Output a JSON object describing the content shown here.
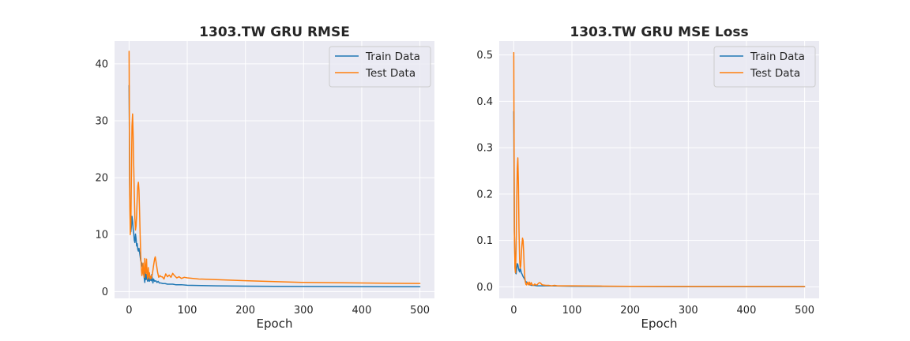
{
  "colors": {
    "train": "#1f77b4",
    "test": "#ff7f0e",
    "background": "#eaeaf2",
    "grid": "#ffffff"
  },
  "chart_data": [
    {
      "type": "line",
      "title": "1303.TW  GRU RMSE",
      "xlabel": "Epoch",
      "ylabel": "",
      "xlim": [
        -25,
        525
      ],
      "ylim": [
        -1.2,
        44
      ],
      "xticks": [
        0,
        100,
        200,
        300,
        400,
        500
      ],
      "xtick_labels": [
        "0",
        "100",
        "200",
        "300",
        "400",
        "500"
      ],
      "yticks": [
        0,
        10,
        20,
        30,
        40
      ],
      "ytick_labels": [
        "0",
        "10",
        "20",
        "30",
        "40"
      ],
      "grid": true,
      "legend_position": "upper right",
      "series": [
        {
          "name": "Train Data",
          "color": "#1f77b4",
          "x": [
            0,
            1,
            2,
            3,
            4,
            5,
            6,
            7,
            8,
            9,
            10,
            11,
            12,
            13,
            14,
            15,
            16,
            17,
            18,
            19,
            20,
            22,
            24,
            26,
            27,
            28,
            29,
            30,
            31,
            32,
            33,
            34,
            35,
            36,
            37,
            38,
            39,
            40,
            41,
            42,
            43,
            44,
            46,
            48,
            50,
            52,
            55,
            58,
            62,
            66,
            70,
            75,
            80,
            90,
            100,
            125,
            150,
            200,
            250,
            300,
            350,
            400,
            450,
            500
          ],
          "y": [
            36.2,
            19.0,
            11.2,
            10.5,
            11.5,
            13.2,
            12.4,
            11.0,
            10.2,
            9.0,
            8.6,
            10.1,
            9.3,
            8.0,
            8.4,
            7.4,
            7.1,
            7.6,
            6.9,
            6.2,
            5.4,
            4.9,
            4.0,
            2.4,
            1.6,
            3.6,
            2.1,
            3.0,
            2.2,
            1.8,
            2.6,
            2.0,
            1.8,
            2.6,
            2.0,
            1.9,
            3.0,
            2.1,
            1.5,
            2.2,
            2.0,
            1.8,
            1.9,
            1.6,
            1.8,
            1.5,
            1.5,
            1.4,
            1.4,
            1.3,
            1.3,
            1.3,
            1.2,
            1.2,
            1.1,
            1.05,
            1.0,
            0.95,
            0.92,
            0.9,
            0.88,
            0.86,
            0.85,
            0.84
          ]
        },
        {
          "name": "Test Data",
          "color": "#ff7f0e",
          "x": [
            0,
            1,
            2,
            3,
            4,
            5,
            6,
            7,
            8,
            9,
            10,
            11,
            12,
            13,
            14,
            15,
            16,
            17,
            18,
            19,
            20,
            21,
            22,
            23,
            24,
            25,
            26,
            27,
            28,
            29,
            30,
            31,
            32,
            33,
            34,
            35,
            36,
            37,
            38,
            40,
            42,
            44,
            45,
            47,
            49,
            51,
            53,
            55,
            57,
            60,
            63,
            66,
            69,
            72,
            75,
            78,
            82,
            86,
            90,
            95,
            100,
            110,
            120,
            150,
            200,
            250,
            300,
            350,
            400,
            450,
            500
          ],
          "y": [
            42.2,
            17.0,
            10.0,
            11.5,
            20.0,
            29.0,
            31.2,
            27.5,
            22.0,
            17.0,
            12.8,
            10.8,
            11.5,
            13.5,
            16.5,
            18.5,
            19.2,
            17.8,
            14.2,
            10.0,
            6.4,
            4.2,
            2.8,
            3.3,
            5.0,
            3.0,
            2.5,
            5.8,
            4.0,
            3.2,
            5.7,
            3.0,
            2.2,
            4.2,
            2.6,
            3.3,
            2.2,
            2.7,
            2.3,
            3.0,
            4.5,
            5.8,
            6.1,
            4.8,
            3.4,
            2.5,
            2.8,
            2.6,
            2.6,
            2.2,
            3.1,
            2.6,
            2.9,
            2.5,
            3.2,
            2.8,
            2.4,
            2.6,
            2.3,
            2.5,
            2.4,
            2.3,
            2.2,
            2.1,
            1.9,
            1.75,
            1.6,
            1.55,
            1.5,
            1.45,
            1.42
          ]
        }
      ]
    },
    {
      "type": "line",
      "title": "1303.TW  GRU MSE Loss",
      "xlabel": "Epoch",
      "ylabel": "",
      "xlim": [
        -25,
        525
      ],
      "ylim": [
        -0.025,
        0.53
      ],
      "xticks": [
        0,
        100,
        200,
        300,
        400,
        500
      ],
      "xtick_labels": [
        "0",
        "100",
        "200",
        "300",
        "400",
        "500"
      ],
      "yticks": [
        0.0,
        0.1,
        0.2,
        0.3,
        0.4,
        0.5
      ],
      "ytick_labels": [
        "0.0",
        "0.1",
        "0.2",
        "0.3",
        "0.4",
        "0.5"
      ],
      "grid": true,
      "legend_position": "upper right",
      "series": [
        {
          "name": "Train Data",
          "color": "#1f77b4",
          "x": [
            0,
            1,
            2,
            3,
            4,
            5,
            6,
            7,
            8,
            9,
            10,
            11,
            12,
            13,
            14,
            15,
            16,
            17,
            18,
            19,
            20,
            22,
            24,
            26,
            28,
            30,
            35,
            40,
            50,
            60,
            80,
            100,
            150,
            200,
            300,
            400,
            500
          ],
          "y": [
            0.378,
            0.12,
            0.05,
            0.03,
            0.028,
            0.04,
            0.05,
            0.048,
            0.04,
            0.035,
            0.032,
            0.04,
            0.036,
            0.03,
            0.028,
            0.025,
            0.022,
            0.02,
            0.018,
            0.015,
            0.012,
            0.01,
            0.007,
            0.005,
            0.004,
            0.003,
            0.003,
            0.002,
            0.002,
            0.002,
            0.0015,
            0.0012,
            0.001,
            0.0008,
            0.0006,
            0.0005,
            0.0005
          ]
        },
        {
          "name": "Test Data",
          "color": "#ff7f0e",
          "x": [
            0,
            1,
            2,
            3,
            4,
            5,
            6,
            7,
            8,
            9,
            10,
            11,
            12,
            13,
            14,
            15,
            16,
            17,
            18,
            19,
            20,
            21,
            22,
            23,
            24,
            25,
            26,
            27,
            28,
            29,
            30,
            32,
            34,
            36,
            38,
            40,
            42,
            44,
            46,
            48,
            50,
            55,
            60,
            65,
            70,
            75,
            80,
            90,
            100,
            150,
            200,
            300,
            400,
            500
          ],
          "y": [
            0.505,
            0.12,
            0.04,
            0.03,
            0.08,
            0.18,
            0.255,
            0.278,
            0.22,
            0.12,
            0.06,
            0.04,
            0.045,
            0.07,
            0.09,
            0.105,
            0.1,
            0.075,
            0.04,
            0.02,
            0.01,
            0.005,
            0.004,
            0.008,
            0.01,
            0.005,
            0.004,
            0.01,
            0.006,
            0.004,
            0.009,
            0.004,
            0.003,
            0.006,
            0.004,
            0.004,
            0.007,
            0.009,
            0.008,
            0.005,
            0.004,
            0.003,
            0.003,
            0.002,
            0.003,
            0.002,
            0.002,
            0.002,
            0.002,
            0.0015,
            0.001,
            0.0008,
            0.0007,
            0.0006
          ]
        }
      ]
    }
  ]
}
